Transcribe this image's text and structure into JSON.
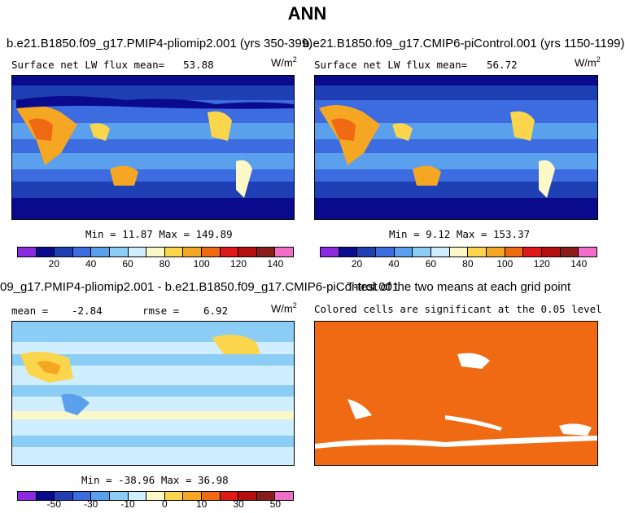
{
  "title": "ANN",
  "panels": [
    {
      "case": "b.e21.B1850.f09_g17.PMIP4-pliomip2.001 (yrs 350-399)",
      "stat_label": "Surface net LW flux mean=",
      "stat_value": "53.88",
      "units": "W/m",
      "units_exp": "2",
      "min_label": "Min =",
      "min_value": "11.87",
      "max_label": "Max =",
      "max_value": "149.89"
    },
    {
      "case": "b.e21.B1850.f09_g17.CMIP6-piControl.001 (yrs 1150-1199)",
      "stat_label": "Surface net LW flux mean=",
      "stat_value": "56.72",
      "units": "W/m",
      "units_exp": "2",
      "min_label": "Min =",
      "min_value": "9.12",
      "max_label": "Max =",
      "max_value": "153.37"
    },
    {
      "case": "09_g17.PMIP4-pliomip2.001 - b.e21.B1850.f09_g17.CMIP6-piControl.001",
      "stat_label": "mean =",
      "stat_value": "-2.84",
      "rmse_label": "rmse =",
      "rmse_value": "6.92",
      "units": "W/m",
      "units_exp": "2",
      "min_label": "Min =",
      "min_value": "-38.96",
      "max_label": "Max =",
      "max_value": "36.98"
    },
    {
      "case": "T-test of the two means at each grid point",
      "subtitle": "Colored cells are significant at the 0.05 level"
    }
  ],
  "colorbar_abs": {
    "colors": [
      "#8a2be2",
      "#0a0a8c",
      "#1f3fb4",
      "#3c6ce0",
      "#5aa0ec",
      "#8ccdf5",
      "#cfeeff",
      "#fdf8c8",
      "#fbd54b",
      "#f5a623",
      "#ef6a12",
      "#e01818",
      "#b30f0f",
      "#8a1c1c",
      "#f06ec8"
    ],
    "ticks": [
      "20",
      "40",
      "60",
      "80",
      "100",
      "120",
      "140"
    ]
  },
  "colorbar_diff": {
    "colors": [
      "#8a2be2",
      "#0a0a8c",
      "#1f3fb4",
      "#3c6ce0",
      "#5aa0ec",
      "#8ccdf5",
      "#cfeeff",
      "#fdf8c8",
      "#fbd54b",
      "#f5a623",
      "#ef6a12",
      "#e01818",
      "#b30f0f",
      "#8a1c1c",
      "#f06ec8"
    ],
    "ticks": [
      "-50",
      "-30",
      "-10",
      "0",
      "10",
      "30",
      "50"
    ]
  }
}
